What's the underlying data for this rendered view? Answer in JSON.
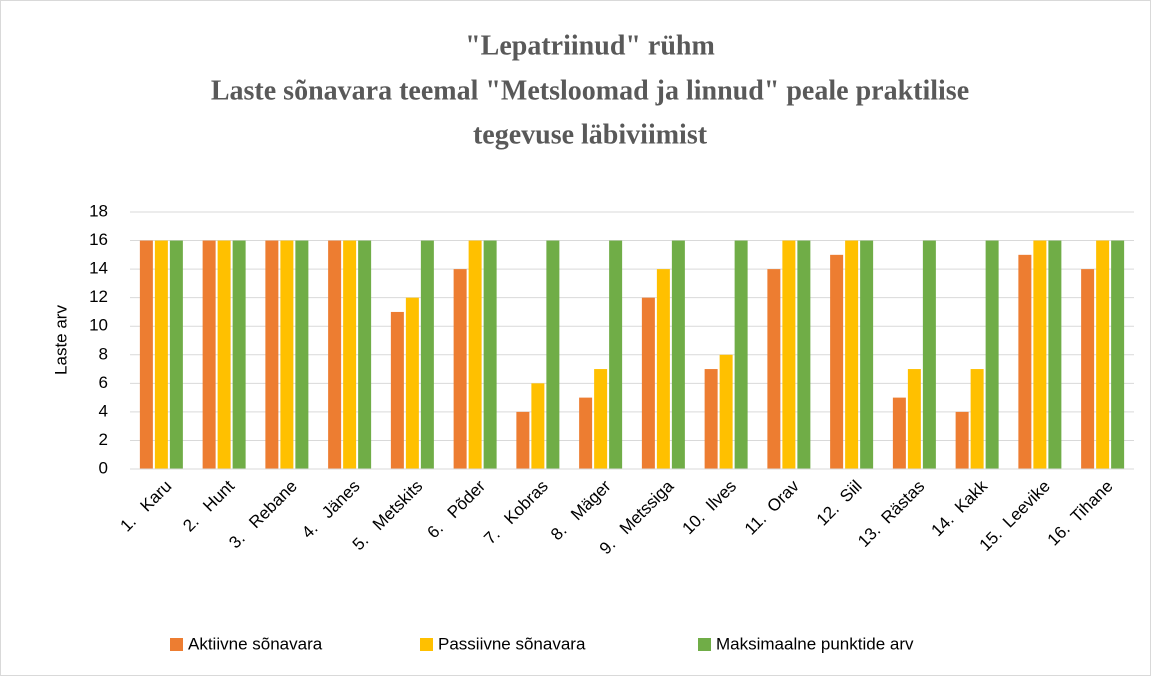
{
  "chart_data": {
    "type": "bar",
    "title": [
      "\"Lepatriinud\" rühm",
      "Laste sõnavara teemal \"Metsloomad ja linnud\" peale praktilise",
      "tegevuse läbiviimist"
    ],
    "y_label": "Laste arv",
    "categories": [
      "1.   Karu",
      "2.   Hunt",
      "3.   Rebane",
      "4.   Jänes",
      "5.   Metskits",
      "6.   Põder",
      "7.   Kobras",
      "8.   Mäger",
      "9.   Metssiga",
      "10.  Ilves",
      "11.  Orav",
      "12.  Siil",
      "13.  Rästas",
      "14.  Kakk",
      "15.  Leevike",
      "16.  Tihane"
    ],
    "series": [
      {
        "name": "Aktiivne sõnavara",
        "color": "#ed7d31",
        "values": [
          16,
          16,
          16,
          16,
          11,
          14,
          4,
          5,
          12,
          7,
          14,
          15,
          5,
          4,
          15,
          14
        ]
      },
      {
        "name": "Passiivne sõnavara",
        "color": "#ffc000",
        "values": [
          16,
          16,
          16,
          16,
          12,
          16,
          6,
          7,
          14,
          8,
          16,
          16,
          7,
          7,
          16,
          16
        ]
      },
      {
        "name": "Maksimaalne punktide arv",
        "color": "#70ad47",
        "values": [
          16,
          16,
          16,
          16,
          16,
          16,
          16,
          16,
          16,
          16,
          16,
          16,
          16,
          16,
          16,
          16
        ]
      }
    ],
    "ylim": [
      0,
      18
    ],
    "yticks": [
      0,
      2,
      4,
      6,
      8,
      10,
      12,
      14,
      16,
      18
    ],
    "grid": true,
    "legend": "bottom"
  }
}
